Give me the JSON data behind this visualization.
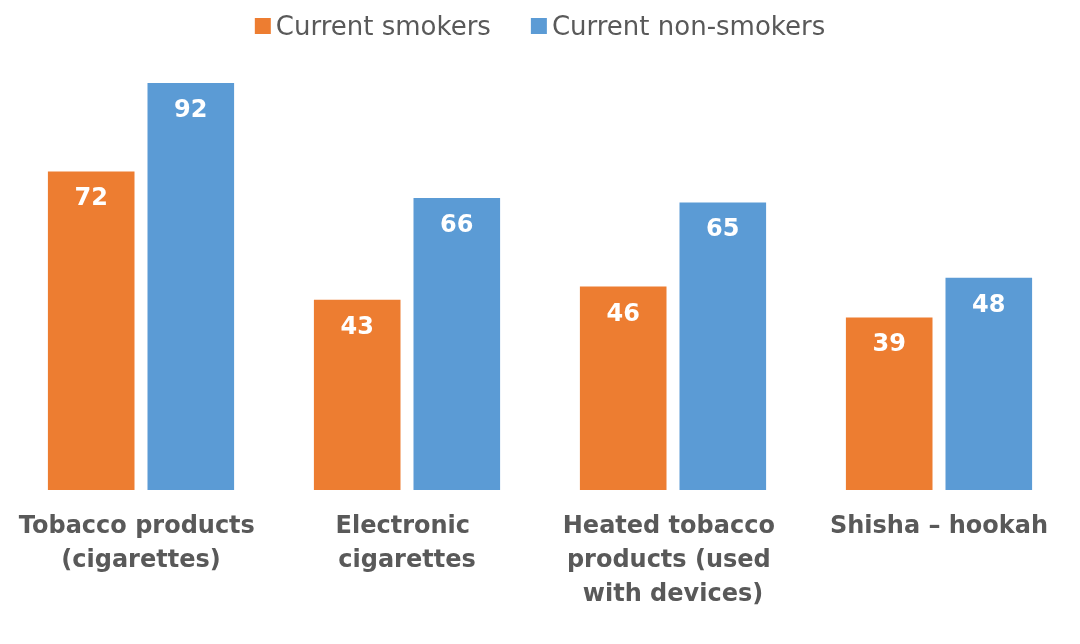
{
  "chart_data": {
    "type": "bar",
    "categories": [
      "Tobacco products (cigarettes)",
      "Electronic cigarettes",
      "Heated tobacco products (used with devices)",
      "Shisha – hookah"
    ],
    "series": [
      {
        "name": "Current smokers",
        "color": "#ed7d31",
        "values": [
          72,
          43,
          46,
          39
        ]
      },
      {
        "name": "Current non-smokers",
        "color": "#5b9bd5",
        "values": [
          92,
          66,
          65,
          48
        ]
      }
    ],
    "data_labels": true,
    "legend": "top",
    "grid": false
  }
}
